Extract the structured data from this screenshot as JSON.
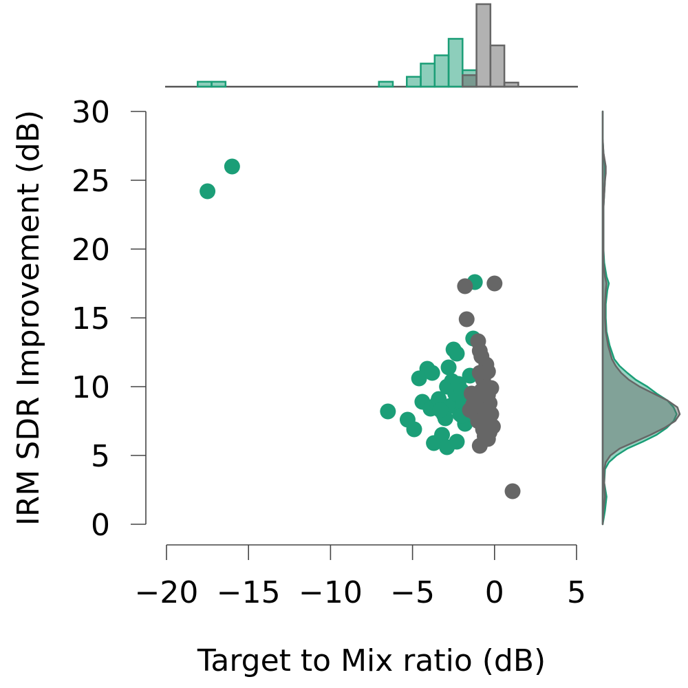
{
  "chart_data": {
    "type": "scatter",
    "title": "",
    "xlabel": "Target to Mix ratio (dB)",
    "ylabel": "IRM SDR Improvement (dB)",
    "xlim": [
      -20,
      5
    ],
    "ylim": [
      0,
      30
    ],
    "xticks": [
      -20,
      -15,
      -10,
      -5,
      0,
      5
    ],
    "yticks": [
      0,
      5,
      10,
      15,
      20,
      25,
      30
    ],
    "grid": false,
    "legend": "none",
    "marginals": {
      "top": "histogram",
      "right": "kde"
    },
    "series": [
      {
        "color": "#1b9e77",
        "points": [
          [
            -17.5,
            24.2
          ],
          [
            -16.0,
            26.0
          ],
          [
            -6.5,
            8.2
          ],
          [
            -5.3,
            7.6
          ],
          [
            -4.9,
            6.9
          ],
          [
            -4.6,
            10.6
          ],
          [
            -4.4,
            8.9
          ],
          [
            -4.1,
            11.3
          ],
          [
            -3.9,
            8.4
          ],
          [
            -3.8,
            11.0
          ],
          [
            -3.7,
            5.9
          ],
          [
            -3.5,
            8.8
          ],
          [
            -3.4,
            9.1
          ],
          [
            -3.2,
            6.5
          ],
          [
            -3.1,
            8.0
          ],
          [
            -3.0,
            7.7
          ],
          [
            -2.9,
            5.6
          ],
          [
            -2.9,
            10.0
          ],
          [
            -2.8,
            11.4
          ],
          [
            -2.7,
            8.6
          ],
          [
            -2.6,
            10.4
          ],
          [
            -2.5,
            12.7
          ],
          [
            -2.4,
            9.5
          ],
          [
            -2.3,
            12.4
          ],
          [
            -2.3,
            6.0
          ],
          [
            -2.2,
            10.2
          ],
          [
            -2.1,
            8.0
          ],
          [
            -2.0,
            9.7
          ],
          [
            -1.8,
            7.3
          ],
          [
            -1.3,
            13.5
          ],
          [
            -1.2,
            17.6
          ],
          [
            -1.5,
            10.8
          ],
          [
            -1.1,
            9.1
          ],
          [
            -1.9,
            8.9
          ],
          [
            -2.0,
            7.9
          ],
          [
            -3.3,
            8.3
          ],
          [
            -1.7,
            9.4
          ],
          [
            -1.4,
            8.3
          ]
        ]
      },
      {
        "color": "#666666",
        "points": [
          [
            -1.8,
            17.3
          ],
          [
            0.0,
            17.5
          ],
          [
            -1.7,
            14.9
          ],
          [
            -1.0,
            13.3
          ],
          [
            -0.9,
            12.6
          ],
          [
            -0.8,
            12.2
          ],
          [
            -0.5,
            11.6
          ],
          [
            -0.9,
            11.0
          ],
          [
            -0.4,
            11.1
          ],
          [
            -0.7,
            10.5
          ],
          [
            -0.5,
            10.0
          ],
          [
            -0.8,
            9.7
          ],
          [
            -0.4,
            9.4
          ],
          [
            -1.1,
            9.2
          ],
          [
            -0.6,
            9.0
          ],
          [
            -0.3,
            8.8
          ],
          [
            -1.3,
            8.7
          ],
          [
            -0.9,
            8.6
          ],
          [
            -0.5,
            8.3
          ],
          [
            -1.2,
            8.1
          ],
          [
            -0.2,
            8.0
          ],
          [
            -0.8,
            7.8
          ],
          [
            -0.4,
            7.6
          ],
          [
            -1.0,
            7.5
          ],
          [
            -0.6,
            7.3
          ],
          [
            -0.1,
            7.1
          ],
          [
            -0.7,
            6.9
          ],
          [
            -0.3,
            6.7
          ],
          [
            -0.6,
            6.4
          ],
          [
            -0.4,
            6.2
          ],
          [
            -0.9,
            5.7
          ],
          [
            1.1,
            2.4
          ],
          [
            -1.4,
            9.5
          ],
          [
            -1.5,
            8.3
          ],
          [
            -0.2,
            9.9
          ]
        ]
      }
    ],
    "top_histogram": {
      "bin_width": 0.85,
      "bins": [
        {
          "series": 0,
          "start": -18.1,
          "height": 0.06
        },
        {
          "series": 0,
          "start": -17.25,
          "height": 0.06
        },
        {
          "series": 0,
          "start": -7.05,
          "height": 0.06
        },
        {
          "series": 0,
          "start": -5.35,
          "height": 0.12
        },
        {
          "series": 0,
          "start": -4.5,
          "height": 0.28
        },
        {
          "series": 0,
          "start": -3.65,
          "height": 0.38
        },
        {
          "series": 0,
          "start": -2.8,
          "height": 0.58
        },
        {
          "series": 0,
          "start": -1.95,
          "height": 0.2
        },
        {
          "series": 1,
          "start": -1.95,
          "height": 0.14
        },
        {
          "series": 1,
          "start": -1.1,
          "height": 1.0
        },
        {
          "series": 1,
          "start": -0.25,
          "height": 0.5
        },
        {
          "series": 1,
          "start": 0.6,
          "height": 0.05
        }
      ]
    },
    "right_kde": {
      "y": [
        0,
        1,
        2,
        3,
        4,
        4.5,
        5,
        5.5,
        6,
        6.5,
        7,
        7.5,
        8,
        8.5,
        9,
        9.5,
        10,
        10.5,
        11,
        11.5,
        12,
        13,
        14,
        15,
        16,
        17,
        17.5,
        18,
        19,
        20,
        21,
        22,
        23,
        24,
        25,
        25.5,
        26,
        27,
        28,
        29,
        30
      ],
      "series": [
        {
          "color": "#1b9e77",
          "density": [
            0,
            0.03,
            0.05,
            0.02,
            0.03,
            0.08,
            0.18,
            0.32,
            0.52,
            0.7,
            0.83,
            0.92,
            0.96,
            0.92,
            0.84,
            0.7,
            0.58,
            0.43,
            0.32,
            0.22,
            0.15,
            0.09,
            0.05,
            0.04,
            0.04,
            0.06,
            0.08,
            0.05,
            0.02,
            0.01,
            0.01,
            0.01,
            0.01,
            0.02,
            0.03,
            0.03,
            0.03,
            0.01,
            0,
            0,
            0
          ]
        },
        {
          "color": "#666666",
          "density": [
            0,
            0.01,
            0.03,
            0.02,
            0.02,
            0.04,
            0.1,
            0.22,
            0.42,
            0.62,
            0.8,
            0.94,
            1.0,
            0.97,
            0.84,
            0.66,
            0.48,
            0.34,
            0.24,
            0.17,
            0.12,
            0.07,
            0.04,
            0.03,
            0.03,
            0.04,
            0.05,
            0.03,
            0.01,
            0.01,
            0.01,
            0.01,
            0.01,
            0.02,
            0.03,
            0.04,
            0.04,
            0.01,
            0,
            0,
            0
          ]
        }
      ]
    }
  }
}
